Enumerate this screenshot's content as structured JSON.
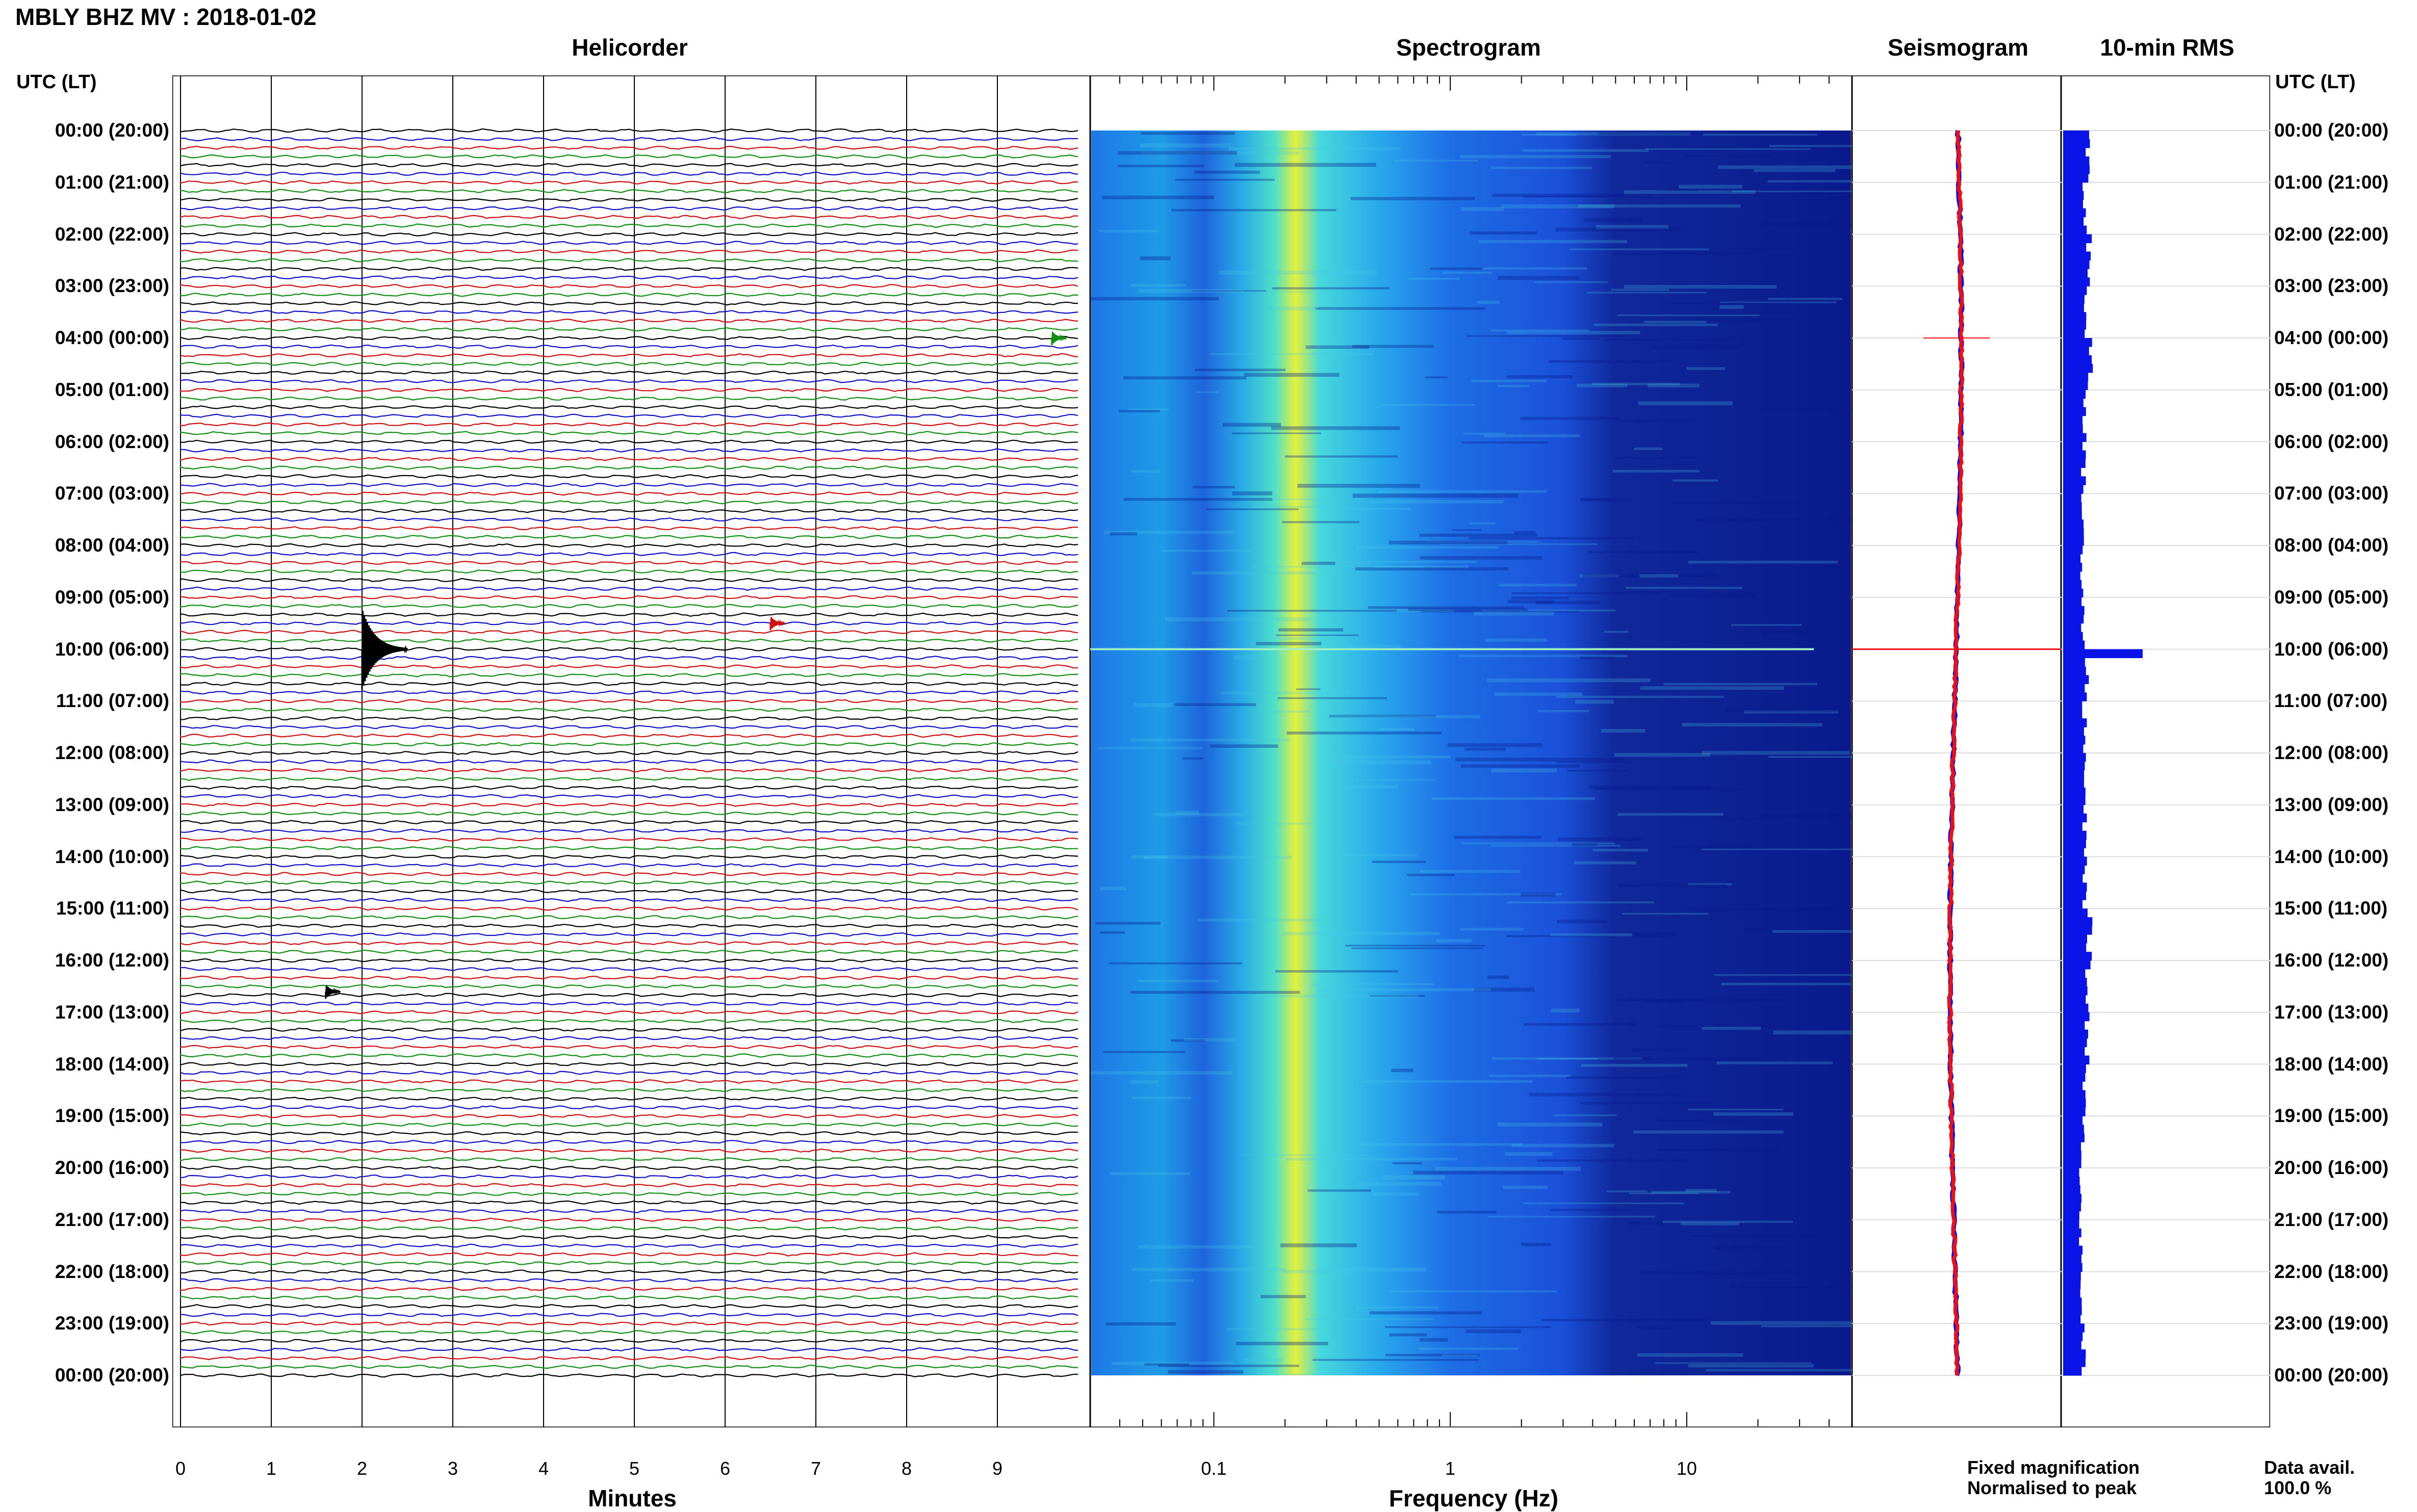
{
  "title": "MBLY BHZ MV : 2018-01-02",
  "corner_label": "UTC (LT)",
  "panels": {
    "helicorder": "Helicorder",
    "spectrogram": "Spectrogram",
    "seismogram": "Seismogram",
    "rms": "10-min RMS"
  },
  "axes": {
    "helicorder_xlabel": "Minutes",
    "spectrogram_xlabel": "Frequency (Hz)",
    "helicorder_ticks": [
      "0",
      "1",
      "2",
      "3",
      "4",
      "5",
      "6",
      "7",
      "8",
      "9"
    ],
    "spectrogram_ticks": [
      "0.1",
      "1",
      "10"
    ]
  },
  "hour_labels": [
    "00:00 (20:00)",
    "01:00 (21:00)",
    "02:00 (22:00)",
    "03:00 (23:00)",
    "04:00 (00:00)",
    "05:00 (01:00)",
    "06:00 (02:00)",
    "07:00 (03:00)",
    "08:00 (04:00)",
    "09:00 (05:00)",
    "10:00 (06:00)",
    "11:00 (07:00)",
    "12:00 (08:00)",
    "13:00 (09:00)",
    "14:00 (10:00)",
    "15:00 (11:00)",
    "16:00 (12:00)",
    "17:00 (13:00)",
    "18:00 (14:00)",
    "19:00 (15:00)",
    "20:00 (16:00)",
    "21:00 (17:00)",
    "22:00 (18:00)",
    "23:00 (19:00)",
    "00:00 (20:00)"
  ],
  "legend": {
    "fixed": "Fixed magnification",
    "normalised": "Normalised to peak",
    "fixed_color": "#1010ee",
    "normalised_color": "#ee1010"
  },
  "availability": {
    "label": "Data avail.",
    "value": "100.0 %"
  },
  "chart_data": [
    {
      "type": "helicorder",
      "title": "Helicorder",
      "xlabel": "Minutes",
      "xlim": [
        0,
        10
      ],
      "rows_per_hour": 6,
      "trace_colors": [
        "#000000",
        "#1010c8",
        "#d01010",
        "#109010"
      ],
      "events": [
        {
          "hour": 10,
          "minute": 2.0,
          "amplitude": "large"
        },
        {
          "hour": 9.5,
          "minute": 6.5,
          "amplitude": "small"
        },
        {
          "hour": 4,
          "minute": 9.6,
          "amplitude": "small"
        },
        {
          "hour": 16.6,
          "minute": 1.6,
          "amplitude": "small"
        }
      ]
    },
    {
      "type": "heatmap",
      "title": "Spectrogram",
      "xlabel": "Frequency (Hz)",
      "xscale": "log",
      "xlim": [
        0.03,
        50
      ],
      "colormap": [
        "#0a1a8c",
        "#1e50e6",
        "#1eb4f0",
        "#46e6c8",
        "#e6f03c"
      ],
      "peak_band_hz": [
        0.2,
        0.25
      ]
    },
    {
      "type": "line",
      "title": "Seismogram",
      "series": [
        {
          "name": "Fixed magnification",
          "color": "#1010ee"
        },
        {
          "name": "Normalised to peak",
          "color": "#ee1010"
        }
      ]
    },
    {
      "type": "bar",
      "title": "10-min RMS",
      "orientation": "horizontal",
      "color": "#0a14e6",
      "hours": [
        0,
        1,
        2,
        3,
        4,
        5,
        6,
        7,
        8,
        9,
        10,
        11,
        12,
        13,
        14,
        15,
        16,
        17,
        18,
        19,
        20,
        21,
        22,
        23
      ],
      "relative_values": [
        0.3,
        0.26,
        0.32,
        0.28,
        0.34,
        0.27,
        0.25,
        0.24,
        0.24,
        0.25,
        1.0,
        0.26,
        0.26,
        0.26,
        0.27,
        0.32,
        0.3,
        0.3,
        0.27,
        0.24,
        0.22,
        0.22,
        0.23,
        0.25
      ]
    }
  ]
}
